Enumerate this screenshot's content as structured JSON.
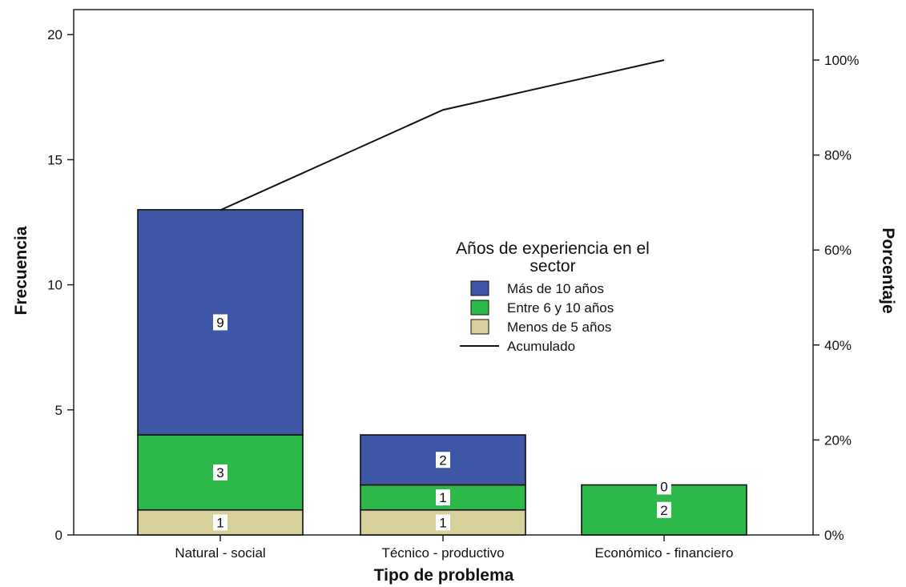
{
  "chart_data": {
    "type": "bar",
    "stacked": true,
    "xlabel": "Tipo de problema",
    "ylabel": "Frecuencia",
    "y2label": "Porcentaje",
    "categories": [
      "Natural - social",
      "Técnico - productivo",
      "Económico - financiero"
    ],
    "series": [
      {
        "name": "Menos de 5 años",
        "values": [
          1,
          1,
          0
        ],
        "labels": [
          "1",
          "1",
          ""
        ],
        "color": "#d8d09a"
      },
      {
        "name": "Entre 6 y 10 años",
        "values": [
          3,
          1,
          2
        ],
        "labels": [
          "3",
          "1",
          "2"
        ],
        "color": "#2db84a"
      },
      {
        "name": "Más de 10 años",
        "values": [
          9,
          2,
          0
        ],
        "labels": [
          "9",
          "2",
          "0"
        ],
        "color": "#3d57a6"
      }
    ],
    "cumulative": {
      "name": "Acumulado",
      "values": [
        68.4,
        89.5,
        100
      ],
      "color": "#111111"
    },
    "ylim": [
      0,
      21
    ],
    "yticks": [
      0,
      5,
      10,
      15,
      20
    ],
    "y2ticks": [
      "0%",
      "20%",
      "40%",
      "60%",
      "80%",
      "100%"
    ],
    "legend": {
      "title": "Años de experiencia en el sector",
      "title_lines": [
        "Años de experiencia en el",
        "sector"
      ],
      "order": [
        "Más de 10 años",
        "Entre 6 y 10 años",
        "Menos de 5 años",
        "Acumulado"
      ],
      "position": "center-right"
    },
    "grid": false
  }
}
